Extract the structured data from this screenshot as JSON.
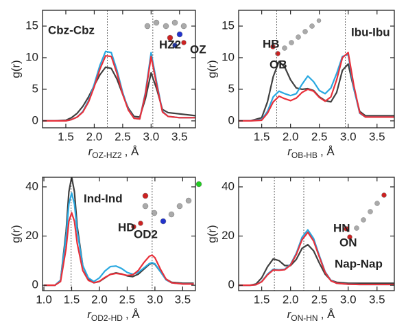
{
  "chart_data": [
    {
      "type": "line",
      "ylabel": "g(r)",
      "xlabel": {
        "symbol": "r",
        "subscript": "OZ-HZ2",
        "unit": ", Å"
      },
      "annotations": [
        {
          "text": "Cbz-Cbz",
          "color": "#1a9a1a"
        },
        {
          "text": "HZ2",
          "color": "#22cc22"
        },
        {
          "text": "OZ",
          "color": "#22cc22"
        }
      ],
      "xlim": [
        1.09,
        3.78
      ],
      "ylim": [
        -1.1,
        17.5
      ],
      "xticks": [
        1.5,
        {
          "value": 2,
          "label": "2.0"
        },
        2.5,
        {
          "value": 3,
          "label": "3.0"
        },
        3.5
      ],
      "yticks": [
        0,
        5,
        10,
        15
      ],
      "reference_lines": [
        2.23,
        3.03
      ],
      "x": [
        1.1,
        1.3,
        1.5,
        1.6,
        1.7,
        1.8,
        1.9,
        2.0,
        2.1,
        2.2,
        2.3,
        2.4,
        2.5,
        2.6,
        2.7,
        2.8,
        2.9,
        3.0,
        3.1,
        3.2,
        3.3,
        3.4,
        3.5,
        3.6,
        3.7,
        3.8
      ],
      "series": [
        {
          "color": "#404040",
          "values": [
            0,
            0,
            0.1,
            0.5,
            1.2,
            2.3,
            3.8,
            5.6,
            7.3,
            8.5,
            8.3,
            6.6,
            4.2,
            2.0,
            0.7,
            0.6,
            3.5,
            7.6,
            5.0,
            1.8,
            1.3,
            1.2,
            1.1,
            1.0,
            0.9,
            0.8
          ]
        },
        {
          "color": "#29a8e0",
          "values": [
            0,
            0,
            0,
            0.2,
            0.6,
            1.5,
            3.2,
            5.8,
            8.8,
            11.0,
            10.8,
            8.0,
            4.5,
            1.8,
            0.4,
            0.3,
            4.5,
            10.8,
            6.0,
            1.5,
            0.7,
            0.6,
            0.5,
            0.5,
            0.5,
            0.5
          ]
        },
        {
          "color": "#e8303a",
          "values": [
            0,
            0,
            0,
            0.2,
            0.6,
            1.4,
            3.0,
            5.4,
            8.2,
            10.3,
            10.2,
            7.5,
            4.2,
            1.7,
            0.4,
            0.3,
            4.2,
            10.2,
            5.6,
            1.4,
            0.7,
            0.6,
            0.5,
            0.5,
            0.5,
            0.5
          ]
        }
      ]
    },
    {
      "type": "line",
      "ylabel": "g(r)",
      "xlabel": {
        "symbol": "r",
        "subscript": "OB-HB",
        "unit": ", Å"
      },
      "annotations": [
        {
          "text": "Ibu-Ibu",
          "color": "#1a3cf0"
        },
        {
          "text": "HB",
          "color": "#22cc22"
        },
        {
          "text": "OB",
          "color": "#22cc22"
        }
      ],
      "xlim": [
        1.1,
        3.8
      ],
      "ylim": [
        -1.1,
        17.5
      ],
      "xticks": [
        1.5,
        {
          "value": 2,
          "label": "2.0"
        },
        2.5,
        {
          "value": 3,
          "label": "3.0"
        },
        3.5
      ],
      "yticks": [
        0,
        5,
        10,
        15
      ],
      "reference_lines": [
        1.76,
        2.95
      ],
      "x": [
        1.1,
        1.3,
        1.5,
        1.6,
        1.7,
        1.8,
        1.9,
        2.0,
        2.1,
        2.2,
        2.3,
        2.4,
        2.5,
        2.6,
        2.7,
        2.8,
        2.9,
        3.0,
        3.1,
        3.2,
        3.3,
        3.4,
        3.5,
        3.6,
        3.7,
        3.8
      ],
      "series": [
        {
          "color": "#404040",
          "values": [
            0,
            0,
            0.5,
            3.0,
            7.0,
            9.4,
            8.5,
            6.5,
            5.2,
            5.0,
            5.1,
            4.8,
            3.8,
            3.2,
            3.0,
            4.5,
            8.0,
            9.0,
            5.0,
            1.5,
            0.8,
            0.8,
            0.8,
            0.8,
            0.8,
            0.8
          ]
        },
        {
          "color": "#29a8e0",
          "values": [
            0,
            0,
            0.2,
            1.5,
            3.8,
            4.7,
            4.3,
            4.0,
            4.3,
            5.8,
            7.1,
            6.2,
            4.8,
            4.3,
            5.2,
            7.5,
            10.2,
            10.5,
            5.0,
            1.2,
            0.6,
            0.6,
            0.6,
            0.6,
            0.6,
            0.6
          ]
        },
        {
          "color": "#e8303a",
          "values": [
            0,
            0,
            0.1,
            1.2,
            3.0,
            3.9,
            3.5,
            3.2,
            3.6,
            4.5,
            5.0,
            4.7,
            3.7,
            3.1,
            3.8,
            6.5,
            10.0,
            10.8,
            5.5,
            1.3,
            0.6,
            0.6,
            0.6,
            0.6,
            0.6,
            0.6
          ]
        }
      ]
    },
    {
      "type": "line",
      "ylabel": "g(r)",
      "xlabel": {
        "symbol": "r",
        "subscript": "OD2-HD",
        "unit": ", Å"
      },
      "annotations": [
        {
          "text": "Ind-Ind",
          "color": "#9a1818"
        },
        {
          "text": "HD",
          "color": "#22cc22"
        },
        {
          "text": "OD2",
          "color": "#22cc22"
        }
      ],
      "xlim": [
        0.975,
        3.73
      ],
      "ylim": [
        -2.2,
        43.9
      ],
      "xticks": [
        {
          "value": 1,
          "label": "1.0"
        },
        1.5,
        {
          "value": 2,
          "label": "2.0"
        },
        2.5,
        {
          "value": 3,
          "label": "3.0"
        },
        3.5
      ],
      "yticks": [
        0,
        20,
        40
      ],
      "reference_lines": [
        1.49,
        2.95
      ],
      "x": [
        1.0,
        1.2,
        1.3,
        1.4,
        1.45,
        1.5,
        1.55,
        1.6,
        1.7,
        1.8,
        1.9,
        2.0,
        2.1,
        2.2,
        2.3,
        2.4,
        2.5,
        2.6,
        2.7,
        2.8,
        2.9,
        2.95,
        3.0,
        3.1,
        3.2,
        3.3,
        3.5,
        3.7
      ],
      "series": [
        {
          "color": "#404040",
          "values": [
            0,
            0,
            2,
            22,
            38,
            44,
            38,
            24,
            8,
            2.5,
            1.0,
            1.5,
            3.0,
            4.5,
            5.0,
            4.6,
            3.8,
            3.5,
            4.5,
            6.5,
            8.5,
            9.0,
            8.5,
            5.5,
            2.5,
            1.2,
            0.8,
            0.8
          ]
        },
        {
          "color": "#29a8e0",
          "values": [
            0,
            0,
            2,
            20,
            33,
            37.5,
            33,
            22,
            8,
            3,
            1.5,
            3,
            5.8,
            7.6,
            7.8,
            6.8,
            5.2,
            4.5,
            5.2,
            7.0,
            8.8,
            9.2,
            8.7,
            5.5,
            2.2,
            1.0,
            0.5,
            0.5
          ]
        },
        {
          "color": "#e8303a",
          "values": [
            0,
            0,
            1.5,
            15,
            26,
            29.5,
            26,
            17,
            6,
            2,
            1.0,
            1.6,
            3.2,
            4.4,
            4.8,
            4.5,
            4.0,
            4.2,
            6.0,
            9.2,
            11.8,
            12.2,
            11.2,
            6.5,
            2.5,
            1.0,
            0.5,
            0.5
          ]
        }
      ]
    },
    {
      "type": "line",
      "ylabel": "g(r)",
      "xlabel": {
        "symbol": "r",
        "subscript": "ON-HN",
        "unit": ", Å"
      },
      "annotations": [
        {
          "text": "Nap-Nap",
          "color": "#a020f0"
        },
        {
          "text": "HN",
          "color": "#22cc22"
        },
        {
          "text": "ON",
          "color": "#22cc22"
        }
      ],
      "xlim": [
        1.1,
        3.8
      ],
      "ylim": [
        -2.2,
        43.9
      ],
      "xticks": [
        1.5,
        {
          "value": 2,
          "label": "2.0"
        },
        2.5,
        {
          "value": 3,
          "label": "3.0"
        },
        3.5
      ],
      "yticks": [
        0,
        20,
        40
      ],
      "reference_lines": [
        1.72,
        2.23
      ],
      "x": [
        1.1,
        1.3,
        1.4,
        1.5,
        1.6,
        1.7,
        1.8,
        1.9,
        2.0,
        2.1,
        2.2,
        2.3,
        2.4,
        2.5,
        2.6,
        2.7,
        2.8,
        3.0,
        3.2,
        3.5,
        3.8
      ],
      "series": [
        {
          "color": "#404040",
          "values": [
            0,
            0,
            0.5,
            3,
            7.5,
            10.7,
            10,
            8,
            8,
            10.5,
            15,
            16.5,
            14,
            9,
            4.5,
            2,
            1.2,
            0.8,
            0.8,
            0.8,
            0.8
          ]
        },
        {
          "color": "#29a8e0",
          "values": [
            0,
            0,
            0.2,
            1.5,
            4.5,
            6.5,
            6.3,
            6.5,
            8.5,
            13,
            19.5,
            22.5,
            19,
            12,
            5.5,
            2,
            0.8,
            0.4,
            0.3,
            0.3,
            0.3
          ]
        },
        {
          "color": "#e8303a",
          "values": [
            0,
            0,
            0.2,
            1.4,
            4.2,
            6.2,
            6.1,
            6.3,
            8.2,
            12.5,
            18.5,
            21.5,
            18,
            11.5,
            5.2,
            1.8,
            0.8,
            0.4,
            0.3,
            0.3,
            0.3
          ]
        }
      ]
    }
  ]
}
